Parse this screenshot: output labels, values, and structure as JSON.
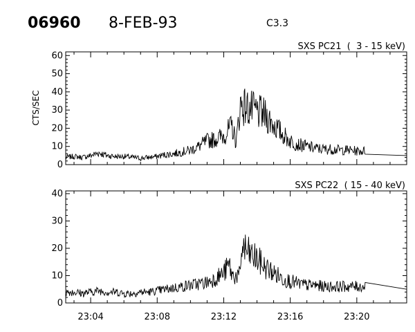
{
  "header": {
    "event_id": "06960",
    "date": "8-FEB-93",
    "goes_class": "C3.3"
  },
  "chart_data": [
    {
      "type": "line",
      "panel_label": "SXS PC21  (  3 - 15 keV)",
      "ylabel": "CTS/SEC",
      "ylim": [
        0,
        62
      ],
      "yticks": [
        "0",
        "10",
        "20",
        "30",
        "40",
        "50",
        "60"
      ],
      "xlim": [
        "23:02:30",
        "23:23:00"
      ],
      "xticks": [],
      "series": [
        {
          "values": [
            [
              "23:02:30",
              4
            ],
            [
              "23:03:00",
              4.5
            ],
            [
              "23:03:30",
              4
            ],
            [
              "23:04:00",
              5
            ],
            [
              "23:04:30",
              6.5
            ],
            [
              "23:05:00",
              5
            ],
            [
              "23:05:30",
              4.5
            ],
            [
              "23:06:00",
              4.5
            ],
            [
              "23:06:30",
              4
            ],
            [
              "23:07:00",
              3.5
            ],
            [
              "23:07:30",
              4
            ],
            [
              "23:08:00",
              4.5
            ],
            [
              "23:08:30",
              5.5
            ],
            [
              "23:09:00",
              6
            ],
            [
              "23:09:30",
              7
            ],
            [
              "23:10:00",
              8
            ],
            [
              "23:10:30",
              10
            ],
            [
              "23:11:00",
              13
            ],
            [
              "23:11:30",
              14
            ],
            [
              "23:12:00",
              16
            ],
            [
              "23:12:30",
              21
            ],
            [
              "23:12:45",
              12
            ],
            [
              "23:13:00",
              33
            ],
            [
              "23:13:30",
              31
            ],
            [
              "23:14:00",
              29
            ],
            [
              "23:14:30",
              27
            ],
            [
              "23:15:00",
              22
            ],
            [
              "23:15:30",
              17
            ],
            [
              "23:16:00",
              13
            ],
            [
              "23:16:30",
              11
            ],
            [
              "23:17:00",
              10
            ],
            [
              "23:17:30",
              9
            ],
            [
              "23:18:00",
              8.5
            ],
            [
              "23:18:30",
              8.5
            ],
            [
              "23:19:00",
              8
            ],
            [
              "23:19:30",
              8
            ],
            [
              "23:20:00",
              7.5
            ],
            [
              "23:20:30",
              7.5
            ],
            [
              "23:23:00",
              5
            ]
          ]
        }
      ]
    },
    {
      "type": "line",
      "panel_label": "SXS PC22  ( 15 - 40 keV)",
      "ylabel": "",
      "ylim": [
        0,
        41
      ],
      "yticks": [
        "0",
        "10",
        "20",
        "30",
        "40"
      ],
      "xlim": [
        "23:02:30",
        "23:23:00"
      ],
      "xticks": [
        "23:04",
        "23:08",
        "23:12",
        "23:16",
        "23:20"
      ],
      "series": [
        {
          "values": [
            [
              "23:02:30",
              4
            ],
            [
              "23:03:00",
              4
            ],
            [
              "23:03:30",
              3.5
            ],
            [
              "23:04:00",
              4
            ],
            [
              "23:04:30",
              4.5
            ],
            [
              "23:05:00",
              4
            ],
            [
              "23:05:30",
              4
            ],
            [
              "23:06:00",
              3.5
            ],
            [
              "23:06:30",
              3.5
            ],
            [
              "23:07:00",
              4
            ],
            [
              "23:07:30",
              4
            ],
            [
              "23:08:00",
              4.5
            ],
            [
              "23:08:30",
              5
            ],
            [
              "23:09:00",
              5.5
            ],
            [
              "23:09:30",
              6
            ],
            [
              "23:10:00",
              6.5
            ],
            [
              "23:10:30",
              7
            ],
            [
              "23:11:00",
              7.5
            ],
            [
              "23:11:30",
              9
            ],
            [
              "23:12:00",
              11
            ],
            [
              "23:12:20",
              14
            ],
            [
              "23:12:30",
              10
            ],
            [
              "23:13:00",
              10
            ],
            [
              "23:13:05",
              21
            ],
            [
              "23:13:30",
              18
            ],
            [
              "23:14:00",
              16
            ],
            [
              "23:14:30",
              13
            ],
            [
              "23:15:00",
              11
            ],
            [
              "23:15:30",
              9
            ],
            [
              "23:16:00",
              8
            ],
            [
              "23:16:30",
              7
            ],
            [
              "23:17:00",
              6.5
            ],
            [
              "23:17:30",
              6.5
            ],
            [
              "23:18:00",
              6
            ],
            [
              "23:18:30",
              6
            ],
            [
              "23:19:00",
              6
            ],
            [
              "23:19:30",
              6
            ],
            [
              "23:20:00",
              6
            ],
            [
              "23:20:30",
              6
            ],
            [
              "23:23:00",
              5
            ]
          ]
        }
      ]
    }
  ]
}
